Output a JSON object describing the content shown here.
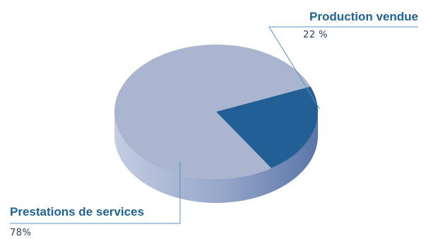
{
  "chart_data": {
    "type": "pie",
    "title": "",
    "slices": [
      {
        "label": "Production vendue",
        "value": 22,
        "value_label": "22 %"
      },
      {
        "label": "Prestations de services",
        "value": 78,
        "value_label": "78%"
      }
    ],
    "style": "3d",
    "legend": "none"
  },
  "colors": {
    "production_vendue": "#225f95",
    "production_vendue_side": "#1b4c78",
    "prestations_de_services": "#aab6cf",
    "side_light": "#c4cde0",
    "side_mid": "#93a5c8",
    "side_dark": "#5a75a8",
    "label_title": "#1f6392",
    "label_value": "#2c3d55",
    "leader_line": "#5f8fb8"
  }
}
